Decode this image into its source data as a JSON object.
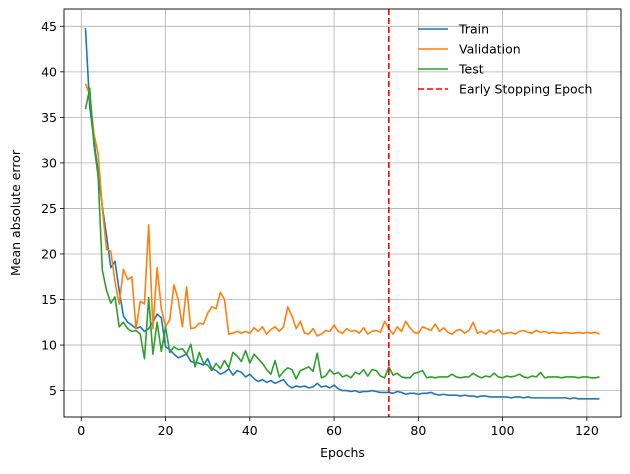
{
  "chart_data": {
    "type": "line",
    "title": "",
    "xlabel": "Epochs",
    "ylabel": "Mean absolute error",
    "xlim": [
      -4.1,
      128.1
    ],
    "ylim": [
      2.1,
      46.9
    ],
    "x_ticks": [
      0,
      20,
      40,
      60,
      80,
      100,
      120
    ],
    "y_ticks": [
      5,
      10,
      15,
      20,
      25,
      30,
      35,
      40,
      45
    ],
    "grid": true,
    "legend_position": "top-right",
    "early_stopping_epoch": 73,
    "series": [
      {
        "name": "Train",
        "color": "#1f77b4",
        "values": [
          44.8,
          36.2,
          32.5,
          29.0,
          25.2,
          22.0,
          18.5,
          19.2,
          16.0,
          13.2,
          12.5,
          12.2,
          11.8,
          12.0,
          11.5,
          11.8,
          12.5,
          13.4,
          13.0,
          9.8,
          9.5,
          9.0,
          8.6,
          8.8,
          9.0,
          8.2,
          8.1,
          8.0,
          7.8,
          8.5,
          7.4,
          7.2,
          6.8,
          7.0,
          7.4,
          6.7,
          7.2,
          7.0,
          6.5,
          6.8,
          6.3,
          6.0,
          6.2,
          5.9,
          6.1,
          5.8,
          6.0,
          6.2,
          5.6,
          5.3,
          5.5,
          5.4,
          5.5,
          5.3,
          5.4,
          5.8,
          5.4,
          5.5,
          5.3,
          5.6,
          5.2,
          5.0,
          5.0,
          4.9,
          5.0,
          4.8,
          4.9,
          4.9,
          5.0,
          4.9,
          4.8,
          4.8,
          4.8,
          4.7,
          4.9,
          4.8,
          4.6,
          4.7,
          4.7,
          4.6,
          4.7,
          4.7,
          4.8,
          4.6,
          4.5,
          4.6,
          4.5,
          4.5,
          4.5,
          4.4,
          4.5,
          4.4,
          4.4,
          4.3,
          4.4,
          4.4,
          4.3,
          4.3,
          4.3,
          4.3,
          4.3,
          4.2,
          4.3,
          4.3,
          4.2,
          4.3,
          4.2,
          4.2,
          4.2,
          4.2,
          4.2,
          4.2,
          4.2,
          4.2,
          4.2,
          4.1,
          4.2,
          4.1,
          4.1,
          4.1,
          4.1,
          4.1,
          4.1
        ]
      },
      {
        "name": "Validation",
        "color": "#ff7f0e",
        "values": [
          38.7,
          37.5,
          33.2,
          31.0,
          25.0,
          20.5,
          20.3,
          17.0,
          14.5,
          18.3,
          17.2,
          17.5,
          11.8,
          14.8,
          14.5,
          23.2,
          11.8,
          18.5,
          14.0,
          12.0,
          12.8,
          16.6,
          15.0,
          12.0,
          16.4,
          11.8,
          11.9,
          12.4,
          12.3,
          13.5,
          14.2,
          14.0,
          15.8,
          15.0,
          11.2,
          11.3,
          11.5,
          11.3,
          11.5,
          11.3,
          11.9,
          11.5,
          12.0,
          11.2,
          11.7,
          12.0,
          11.5,
          12.0,
          14.2,
          13.2,
          11.8,
          12.6,
          11.3,
          11.2,
          11.8,
          11.0,
          11.2,
          11.6,
          11.5,
          12.2,
          11.5,
          11.3,
          11.8,
          11.5,
          11.6,
          11.3,
          11.9,
          11.2,
          11.5,
          11.6,
          11.4,
          12.6,
          11.8,
          11.2,
          12.0,
          11.5,
          12.6,
          11.9,
          11.4,
          11.3,
          12.0,
          11.8,
          11.6,
          12.3,
          11.5,
          11.9,
          11.4,
          11.2,
          11.6,
          11.7,
          11.3,
          11.6,
          12.5,
          11.3,
          11.5,
          11.2,
          11.6,
          11.4,
          11.7,
          11.2,
          11.3,
          11.4,
          11.2,
          11.5,
          11.6,
          11.4,
          11.3,
          11.6,
          11.4,
          11.5,
          11.3,
          11.4,
          11.3,
          11.3,
          11.4,
          11.3,
          11.3,
          11.4,
          11.3,
          11.4,
          11.3,
          11.4,
          11.2
        ]
      },
      {
        "name": "Test",
        "color": "#2ca02c",
        "values": [
          35.9,
          38.2,
          32.0,
          28.5,
          18.2,
          16.0,
          14.6,
          15.3,
          12.0,
          12.5,
          11.8,
          11.5,
          11.6,
          11.2,
          8.5,
          15.2,
          9.0,
          12.5,
          9.3,
          12.0,
          9.2,
          9.8,
          9.5,
          9.6,
          9.0,
          10.1,
          7.6,
          9.2,
          8.0,
          7.8,
          7.2,
          8.0,
          7.4,
          8.3,
          7.5,
          9.2,
          8.8,
          8.2,
          9.4,
          8.0,
          9.0,
          8.5,
          8.0,
          7.3,
          6.8,
          8.3,
          6.5,
          7.1,
          7.5,
          7.3,
          6.3,
          7.2,
          7.4,
          7.6,
          7.1,
          9.1,
          6.4,
          6.6,
          7.3,
          6.8,
          7.0,
          6.5,
          6.7,
          6.4,
          7.0,
          6.8,
          7.3,
          6.6,
          7.3,
          7.2,
          6.6,
          6.4,
          7.6,
          6.7,
          6.9,
          6.5,
          6.4,
          6.4,
          6.9,
          7.0,
          7.2,
          6.4,
          6.5,
          6.4,
          6.5,
          6.5,
          6.5,
          6.8,
          6.5,
          6.4,
          6.5,
          6.5,
          6.9,
          6.6,
          6.4,
          6.6,
          6.5,
          6.9,
          6.5,
          6.4,
          6.6,
          6.5,
          6.6,
          6.8,
          6.5,
          6.4,
          6.6,
          6.5,
          7.0,
          6.4,
          6.5,
          6.5,
          6.5,
          6.4,
          6.5,
          6.5,
          6.5,
          6.4,
          6.5,
          6.5,
          6.4,
          6.4,
          6.5
        ]
      },
      {
        "name": "Early Stopping Epoch",
        "color": "#ff0000",
        "style": "dashed",
        "x": [
          73,
          73
        ]
      }
    ]
  }
}
